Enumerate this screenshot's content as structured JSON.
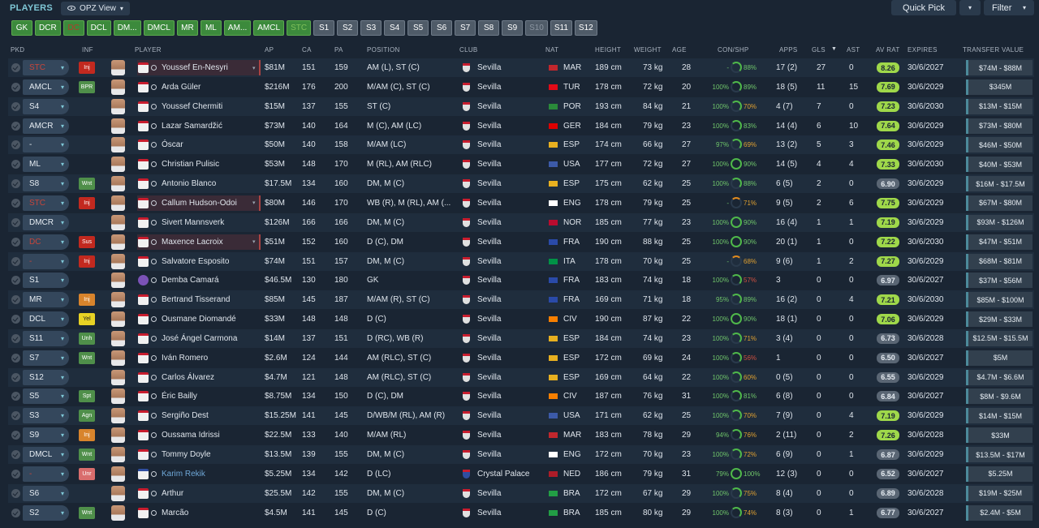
{
  "header": {
    "title": "PLAYERS",
    "view_label": "OPZ View",
    "quick_pick": "Quick Pick",
    "filter": "Filter"
  },
  "position_tabs": [
    {
      "label": "GK",
      "style": "g"
    },
    {
      "label": "DCR",
      "style": "g"
    },
    {
      "label": "DC",
      "style": "gi"
    },
    {
      "label": "DCL",
      "style": "g"
    },
    {
      "label": "DM...",
      "style": "g"
    },
    {
      "label": "DMCL",
      "style": "g"
    },
    {
      "label": "MR",
      "style": "g"
    },
    {
      "label": "ML",
      "style": "g"
    },
    {
      "label": "AM...",
      "style": "g"
    },
    {
      "label": "AMCL",
      "style": "g"
    },
    {
      "label": "STC",
      "style": "gx"
    },
    {
      "label": "S1",
      "style": "s"
    },
    {
      "label": "S2",
      "style": "s"
    },
    {
      "label": "S3",
      "style": "s"
    },
    {
      "label": "S4",
      "style": "s"
    },
    {
      "label": "S5",
      "style": "s"
    },
    {
      "label": "S6",
      "style": "s"
    },
    {
      "label": "S7",
      "style": "s"
    },
    {
      "label": "S8",
      "style": "s"
    },
    {
      "label": "S9",
      "style": "s"
    },
    {
      "label": "S10",
      "style": "sx"
    },
    {
      "label": "S11",
      "style": "s"
    },
    {
      "label": "S12",
      "style": "s"
    }
  ],
  "columns": {
    "pkd": "PKD",
    "inf": "INF",
    "player": "PLAYER",
    "ap": "AP",
    "ca": "CA",
    "pa": "PA",
    "position": "POSITION",
    "club": "CLUB",
    "nat": "NAT",
    "height": "HEIGHT",
    "weight": "WEIGHT",
    "age": "AGE",
    "conshp": "CON/SHP",
    "apps": "APPS",
    "gls": "GLS",
    "ast": "AST",
    "avrat": "AV RAT",
    "expires": "EXPIRES",
    "tv": "TRANSFER VALUE"
  },
  "players": [
    {
      "pkd": "STC",
      "pkd_red": true,
      "inf": "Inj",
      "inf_c": "red",
      "name": "Youssef En-Nesyri",
      "hl": true,
      "ap": "$81M",
      "ca": "151",
      "pa": "159",
      "pos": "AM (L), ST (C)",
      "club": "Sevilla",
      "nat": "MAR",
      "flag": "#c1272d",
      "h": "189 cm",
      "w": "73 kg",
      "age": "28",
      "con": "-",
      "ring": "part",
      "shp": "88%",
      "shp_c": "g",
      "apps": "17 (2)",
      "gls": "27",
      "ast": "0",
      "avr": "8.26",
      "avr_c": "hi",
      "exp": "30/6/2027",
      "tv": "$74M - $88M"
    },
    {
      "pkd": "AMCL",
      "inf": "BPR",
      "inf_c": "grn",
      "name": "Arda Güler",
      "ap": "$216M",
      "ca": "176",
      "pa": "200",
      "pos": "M/AM (C), ST (C)",
      "club": "Sevilla",
      "nat": "TUR",
      "flag": "#e30a17",
      "h": "178 cm",
      "w": "72 kg",
      "age": "20",
      "con": "100%",
      "ring": "part",
      "shp": "89%",
      "shp_c": "g",
      "apps": "18 (5)",
      "gls": "11",
      "ast": "15",
      "avr": "7.69",
      "avr_c": "hi",
      "exp": "30/6/2029",
      "tv": "$345M"
    },
    {
      "pkd": "S4",
      "name": "Youssef Chermiti",
      "ap": "$15M",
      "ca": "137",
      "pa": "155",
      "pos": "ST (C)",
      "club": "Sevilla",
      "nat": "POR",
      "flag": "#2a8a3a",
      "h": "193 cm",
      "w": "84 kg",
      "age": "21",
      "con": "100%",
      "ring": "part",
      "shp": "70%",
      "shp_c": "o",
      "apps": "4 (7)",
      "gls": "7",
      "ast": "0",
      "avr": "7.23",
      "avr_c": "hi",
      "exp": "30/6/2030",
      "tv": "$13M - $15M"
    },
    {
      "pkd": "AMCR",
      "name": "Lazar Samardžić",
      "ap": "$73M",
      "ca": "140",
      "pa": "164",
      "pos": "M (C), AM (LC)",
      "club": "Sevilla",
      "nat": "GER",
      "flag": "#dd0000",
      "h": "184 cm",
      "w": "79 kg",
      "age": "23",
      "con": "100%",
      "ring": "part",
      "shp": "83%",
      "shp_c": "g",
      "apps": "14 (4)",
      "gls": "6",
      "ast": "10",
      "avr": "7.64",
      "avr_c": "hi",
      "exp": "30/6/2029",
      "tv": "$73M - $80M"
    },
    {
      "pkd": "-",
      "name": "Óscar",
      "ap": "$50M",
      "ca": "140",
      "pa": "158",
      "pos": "M/AM (LC)",
      "club": "Sevilla",
      "nat": "ESP",
      "flag": "#e8b020",
      "h": "174 cm",
      "w": "66 kg",
      "age": "27",
      "con": "97%",
      "ring": "part",
      "shp": "69%",
      "shp_c": "o",
      "apps": "13 (2)",
      "gls": "5",
      "ast": "3",
      "avr": "7.46",
      "avr_c": "hi",
      "exp": "30/6/2029",
      "tv": "$46M - $50M"
    },
    {
      "pkd": "ML",
      "name": "Christian Pulisic",
      "ap": "$53M",
      "ca": "148",
      "pa": "170",
      "pos": "M (RL), AM (RLC)",
      "club": "Sevilla",
      "nat": "USA",
      "flag": "#3c5aa8",
      "h": "177 cm",
      "w": "72 kg",
      "age": "27",
      "con": "100%",
      "ring": "full",
      "shp": "90%",
      "shp_c": "g",
      "apps": "14 (5)",
      "gls": "4",
      "ast": "4",
      "avr": "7.33",
      "avr_c": "hi",
      "exp": "30/6/2030",
      "tv": "$40M - $53M"
    },
    {
      "pkd": "S8",
      "inf": "Wnt",
      "inf_c": "grn",
      "name": "Antonio Blanco",
      "ap": "$17.5M",
      "ca": "134",
      "pa": "160",
      "pos": "DM, M (C)",
      "club": "Sevilla",
      "nat": "ESP",
      "flag": "#e8b020",
      "h": "175 cm",
      "w": "62 kg",
      "age": "25",
      "con": "100%",
      "ring": "part",
      "shp": "88%",
      "shp_c": "g",
      "apps": "6 (5)",
      "gls": "2",
      "ast": "0",
      "avr": "6.90",
      "avr_c": "mid",
      "exp": "30/6/2029",
      "tv": "$16M - $17.5M"
    },
    {
      "pkd": "STC",
      "pkd_red": true,
      "inf": "Inj",
      "inf_c": "red",
      "name": "Callum Hudson-Odoi",
      "hl": true,
      "ap": "$80M",
      "ca": "146",
      "pa": "170",
      "pos": "WB (R), M (RL), AM (...",
      "club": "Sevilla",
      "nat": "ENG",
      "flag": "#ffffff",
      "h": "178 cm",
      "w": "79 kg",
      "age": "25",
      "con": "-",
      "ring": "low",
      "shp": "71%",
      "shp_c": "o",
      "apps": "9 (5)",
      "gls": "2",
      "ast": "6",
      "avr": "7.75",
      "avr_c": "hi",
      "exp": "30/6/2029",
      "tv": "$67M - $80M"
    },
    {
      "pkd": "DMCR",
      "name": "Sivert Mannsverk",
      "ap": "$126M",
      "ca": "166",
      "pa": "166",
      "pos": "DM, M (C)",
      "club": "Sevilla",
      "nat": "NOR",
      "flag": "#ba0c2f",
      "h": "185 cm",
      "w": "77 kg",
      "age": "23",
      "con": "100%",
      "ring": "full",
      "shp": "90%",
      "shp_c": "g",
      "apps": "16 (4)",
      "gls": "1",
      "ast": "1",
      "avr": "7.19",
      "avr_c": "hi",
      "exp": "30/6/2029",
      "tv": "$93M - $126M"
    },
    {
      "pkd": "DC",
      "pkd_red": true,
      "inf": "Sus",
      "inf_c": "red",
      "name": "Maxence Lacroix",
      "hl": true,
      "ap": "$51M",
      "ca": "152",
      "pa": "160",
      "pos": "D (C), DM",
      "club": "Sevilla",
      "nat": "FRA",
      "flag": "#2a4aa8",
      "h": "190 cm",
      "w": "88 kg",
      "age": "25",
      "con": "100%",
      "ring": "full",
      "shp": "90%",
      "shp_c": "g",
      "apps": "20 (1)",
      "gls": "1",
      "ast": "0",
      "avr": "7.22",
      "avr_c": "hi",
      "exp": "30/6/2030",
      "tv": "$47M - $51M"
    },
    {
      "pkd": "-",
      "pkd_red": true,
      "inf": "Inj",
      "inf_c": "red",
      "name": "Salvatore Esposito",
      "ap": "$74M",
      "ca": "151",
      "pa": "157",
      "pos": "DM, M (C)",
      "club": "Sevilla",
      "nat": "ITA",
      "flag": "#009246",
      "h": "178 cm",
      "w": "70 kg",
      "age": "25",
      "con": "-",
      "ring": "low",
      "shp": "68%",
      "shp_c": "o",
      "apps": "9 (6)",
      "gls": "1",
      "ast": "2",
      "avr": "7.27",
      "avr_c": "hi",
      "exp": "30/6/2029",
      "tv": "$68M - $81M"
    },
    {
      "pkd": "S1",
      "name": "Demba Camará",
      "gk": true,
      "ap": "$46.5M",
      "ca": "130",
      "pa": "180",
      "pos": "GK",
      "club": "Sevilla",
      "nat": "FRA",
      "flag": "#2a4aa8",
      "h": "183 cm",
      "w": "74 kg",
      "age": "18",
      "con": "100%",
      "ring": "part",
      "shp": "57%",
      "shp_c": "r",
      "apps": "3",
      "gls": "0",
      "ast": "0",
      "avr": "6.97",
      "avr_c": "mid",
      "exp": "30/6/2027",
      "tv": "$37M - $56M"
    },
    {
      "pkd": "MR",
      "inf": "Inj",
      "inf_c": "org",
      "name": "Bertrand Tisserand",
      "ap": "$85M",
      "ca": "145",
      "pa": "187",
      "pos": "M/AM (R), ST (C)",
      "club": "Sevilla",
      "nat": "FRA",
      "flag": "#2a4aa8",
      "h": "169 cm",
      "w": "71 kg",
      "age": "18",
      "con": "95%",
      "ring": "part",
      "shp": "89%",
      "shp_c": "g",
      "apps": "16 (2)",
      "gls": "0",
      "ast": "4",
      "avr": "7.21",
      "avr_c": "hi",
      "exp": "30/6/2030",
      "tv": "$85M - $100M"
    },
    {
      "pkd": "DCL",
      "inf": "Yel",
      "inf_c": "yel",
      "name": "Ousmane Diomandé",
      "ap": "$33M",
      "ca": "148",
      "pa": "148",
      "pos": "D (C)",
      "club": "Sevilla",
      "nat": "CIV",
      "flag": "#f77f00",
      "h": "190 cm",
      "w": "87 kg",
      "age": "22",
      "con": "100%",
      "ring": "full",
      "shp": "90%",
      "shp_c": "g",
      "apps": "18 (1)",
      "gls": "0",
      "ast": "0",
      "avr": "7.06",
      "avr_c": "hi",
      "exp": "30/6/2029",
      "tv": "$29M - $33M"
    },
    {
      "pkd": "S11",
      "inf": "Unh",
      "inf_c": "grn",
      "name": "José Ángel Carmona",
      "ap": "$14M",
      "ca": "137",
      "pa": "151",
      "pos": "D (RC), WB (R)",
      "club": "Sevilla",
      "nat": "ESP",
      "flag": "#e8b020",
      "h": "184 cm",
      "w": "74 kg",
      "age": "23",
      "con": "100%",
      "ring": "part",
      "shp": "71%",
      "shp_c": "o",
      "apps": "3 (4)",
      "gls": "0",
      "ast": "0",
      "avr": "6.73",
      "avr_c": "mid",
      "exp": "30/6/2028",
      "tv": "$12.5M - $15.5M"
    },
    {
      "pkd": "S7",
      "inf": "Wnt",
      "inf_c": "grn",
      "name": "Iván Romero",
      "ap": "$2.6M",
      "ca": "124",
      "pa": "144",
      "pos": "AM (RLC), ST (C)",
      "club": "Sevilla",
      "nat": "ESP",
      "flag": "#e8b020",
      "h": "172 cm",
      "w": "69 kg",
      "age": "24",
      "con": "100%",
      "ring": "part",
      "shp": "56%",
      "shp_c": "r",
      "apps": "1",
      "gls": "0",
      "ast": "0",
      "avr": "6.50",
      "avr_c": "mid",
      "exp": "30/6/2027",
      "tv": "$5M"
    },
    {
      "pkd": "S12",
      "name": "Carlos Álvarez",
      "ap": "$4.7M",
      "ca": "121",
      "pa": "148",
      "pos": "AM (RLC), ST (C)",
      "club": "Sevilla",
      "nat": "ESP",
      "flag": "#e8b020",
      "h": "169 cm",
      "w": "64 kg",
      "age": "22",
      "con": "100%",
      "ring": "part",
      "shp": "60%",
      "shp_c": "o",
      "apps": "0 (5)",
      "gls": "0",
      "ast": "0",
      "avr": "6.55",
      "avr_c": "mid",
      "exp": "30/6/2029",
      "tv": "$4.7M - $6.6M"
    },
    {
      "pkd": "S5",
      "inf": "Spt",
      "inf_c": "grn",
      "name": "Éric Bailly",
      "ap": "$8.75M",
      "ca": "134",
      "pa": "150",
      "pos": "D (C), DM",
      "club": "Sevilla",
      "nat": "CIV",
      "flag": "#f77f00",
      "h": "187 cm",
      "w": "76 kg",
      "age": "31",
      "con": "100%",
      "ring": "part",
      "shp": "81%",
      "shp_c": "g",
      "apps": "6 (8)",
      "gls": "0",
      "ast": "0",
      "avr": "6.84",
      "avr_c": "mid",
      "exp": "30/6/2027",
      "tv": "$8M - $9.6M"
    },
    {
      "pkd": "S3",
      "inf": "Agn",
      "inf_c": "grn",
      "name": "Sergiño Dest",
      "ap": "$15.25M",
      "ca": "141",
      "pa": "145",
      "pos": "D/WB/M (RL), AM (R)",
      "club": "Sevilla",
      "nat": "USA",
      "flag": "#3c5aa8",
      "h": "171 cm",
      "w": "62 kg",
      "age": "25",
      "con": "100%",
      "ring": "part",
      "shp": "70%",
      "shp_c": "o",
      "apps": "7 (9)",
      "gls": "0",
      "ast": "4",
      "avr": "7.19",
      "avr_c": "hi",
      "exp": "30/6/2029",
      "tv": "$14M - $15M"
    },
    {
      "pkd": "S9",
      "inf": "Inj",
      "inf_c": "org",
      "name": "Oussama Idrissi",
      "ap": "$22.5M",
      "ca": "133",
      "pa": "140",
      "pos": "M/AM (RL)",
      "club": "Sevilla",
      "nat": "MAR",
      "flag": "#c1272d",
      "h": "183 cm",
      "w": "78 kg",
      "age": "29",
      "con": "94%",
      "ring": "part",
      "shp": "76%",
      "shp_c": "o",
      "apps": "2 (11)",
      "gls": "0",
      "ast": "2",
      "avr": "7.26",
      "avr_c": "hi",
      "exp": "30/6/2028",
      "tv": "$33M"
    },
    {
      "pkd": "DMCL",
      "inf": "Wnt",
      "inf_c": "grn",
      "name": "Tommy Doyle",
      "ap": "$13.5M",
      "ca": "139",
      "pa": "155",
      "pos": "DM, M (C)",
      "club": "Sevilla",
      "nat": "ENG",
      "flag": "#ffffff",
      "h": "172 cm",
      "w": "70 kg",
      "age": "23",
      "con": "100%",
      "ring": "part",
      "shp": "72%",
      "shp_c": "o",
      "apps": "6 (9)",
      "gls": "0",
      "ast": "1",
      "avr": "6.87",
      "avr_c": "mid",
      "exp": "30/6/2029",
      "tv": "$13.5M - $17M"
    },
    {
      "pkd": "-",
      "pkd_red": true,
      "inf": "Unr",
      "inf_c": "pink",
      "name": "Karim Rekik",
      "blue": true,
      "cp": true,
      "ap": "$5.25M",
      "ca": "134",
      "pa": "142",
      "pos": "D (LC)",
      "club": "Crystal Palace",
      "nat": "NED",
      "flag": "#ae1c28",
      "h": "186 cm",
      "w": "79 kg",
      "age": "31",
      "con": "79%",
      "ring": "full",
      "shp": "100%",
      "shp_c": "g",
      "apps": "12 (3)",
      "gls": "0",
      "ast": "0",
      "avr": "6.52",
      "avr_c": "mid",
      "exp": "30/6/2027",
      "tv": "$5.25M"
    },
    {
      "pkd": "S6",
      "name": "Arthur",
      "ap": "$25.5M",
      "ca": "142",
      "pa": "155",
      "pos": "DM, M (C)",
      "club": "Sevilla",
      "nat": "BRA",
      "flag": "#229e45",
      "h": "172 cm",
      "w": "67 kg",
      "age": "29",
      "con": "100%",
      "ring": "part",
      "shp": "75%",
      "shp_c": "o",
      "apps": "8 (4)",
      "gls": "0",
      "ast": "0",
      "avr": "6.89",
      "avr_c": "mid",
      "exp": "30/6/2028",
      "tv": "$19M - $25M"
    },
    {
      "pkd": "S2",
      "inf": "Wnt",
      "inf_c": "grn",
      "name": "Marcão",
      "ap": "$4.5M",
      "ca": "141",
      "pa": "145",
      "pos": "D (C)",
      "club": "Sevilla",
      "nat": "BRA",
      "flag": "#229e45",
      "h": "185 cm",
      "w": "80 kg",
      "age": "29",
      "con": "100%",
      "ring": "part",
      "shp": "74%",
      "shp_c": "o",
      "apps": "8 (3)",
      "gls": "0",
      "ast": "1",
      "avr": "6.77",
      "avr_c": "mid",
      "exp": "30/6/2027",
      "tv": "$2.4M - $5M"
    }
  ]
}
